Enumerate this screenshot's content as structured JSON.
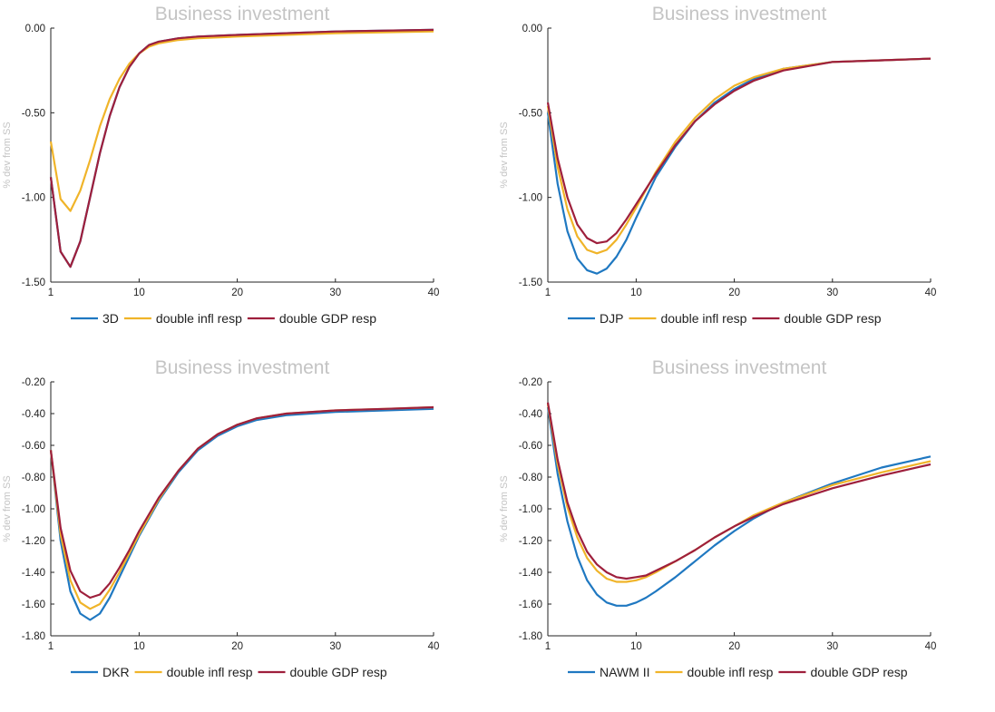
{
  "series_colors": [
    "#1f78c1",
    "#f0b429",
    "#9e1f3c"
  ],
  "chart_data": [
    {
      "type": "line",
      "title": "Business investment",
      "ylabel": "% dev from SS",
      "xlim": [
        1,
        40
      ],
      "ylim": [
        -1.5,
        0
      ],
      "xticks": [
        {
          "v": 1,
          "label": "1"
        },
        {
          "v": 10,
          "label": "10"
        },
        {
          "v": 20,
          "label": "20"
        },
        {
          "v": 30,
          "label": "30"
        },
        {
          "v": 40,
          "label": "40"
        }
      ],
      "yticks": [
        {
          "v": 0,
          "label": "0.00"
        },
        {
          "v": -0.5,
          "label": "-0.50"
        },
        {
          "v": -1.0,
          "label": "-1.00"
        },
        {
          "v": -1.5,
          "label": "-1.50"
        }
      ],
      "legend": "bottom",
      "series": [
        {
          "name": "3D",
          "x": [
            1,
            2,
            3,
            4,
            5,
            6,
            7,
            8,
            9,
            10,
            11,
            12,
            14,
            16,
            20,
            30,
            40
          ],
          "y": [
            -0.88,
            -1.32,
            -1.41,
            -1.26,
            -1.0,
            -0.74,
            -0.52,
            -0.35,
            -0.23,
            -0.15,
            -0.1,
            -0.08,
            -0.06,
            -0.05,
            -0.04,
            -0.02,
            -0.01
          ]
        },
        {
          "name": "double infl resp",
          "x": [
            1,
            2,
            3,
            4,
            5,
            6,
            7,
            8,
            9,
            10,
            11,
            12,
            14,
            16,
            20,
            30,
            40
          ],
          "y": [
            -0.67,
            -1.01,
            -1.08,
            -0.96,
            -0.78,
            -0.58,
            -0.42,
            -0.3,
            -0.21,
            -0.15,
            -0.11,
            -0.09,
            -0.07,
            -0.06,
            -0.05,
            -0.03,
            -0.02
          ]
        },
        {
          "name": "double GDP resp",
          "x": [
            1,
            2,
            3,
            4,
            5,
            6,
            7,
            8,
            9,
            10,
            11,
            12,
            14,
            16,
            20,
            30,
            40
          ],
          "y": [
            -0.88,
            -1.32,
            -1.41,
            -1.26,
            -1.0,
            -0.74,
            -0.52,
            -0.35,
            -0.23,
            -0.15,
            -0.1,
            -0.08,
            -0.06,
            -0.05,
            -0.04,
            -0.02,
            -0.01
          ]
        }
      ]
    },
    {
      "type": "line",
      "title": "Business investment",
      "ylabel": "% dev from SS",
      "xlim": [
        1,
        40
      ],
      "ylim": [
        -1.5,
        0
      ],
      "xticks": [
        {
          "v": 1,
          "label": "1"
        },
        {
          "v": 10,
          "label": "10"
        },
        {
          "v": 20,
          "label": "20"
        },
        {
          "v": 30,
          "label": "30"
        },
        {
          "v": 40,
          "label": "40"
        }
      ],
      "yticks": [
        {
          "v": 0,
          "label": "0.00"
        },
        {
          "v": -0.5,
          "label": "-0.50"
        },
        {
          "v": -1.0,
          "label": "-1.00"
        },
        {
          "v": -1.5,
          "label": "-1.50"
        }
      ],
      "legend": "bottom",
      "series": [
        {
          "name": "DJP",
          "x": [
            1,
            2,
            3,
            4,
            5,
            6,
            7,
            8,
            9,
            10,
            12,
            14,
            16,
            18,
            20,
            22,
            25,
            30,
            35,
            40
          ],
          "y": [
            -0.5,
            -0.92,
            -1.2,
            -1.36,
            -1.43,
            -1.45,
            -1.42,
            -1.35,
            -1.25,
            -1.12,
            -0.88,
            -0.7,
            -0.55,
            -0.44,
            -0.36,
            -0.3,
            -0.24,
            -0.2,
            -0.19,
            -0.18
          ]
        },
        {
          "name": "double infl resp",
          "x": [
            1,
            2,
            3,
            4,
            5,
            6,
            7,
            8,
            9,
            10,
            12,
            14,
            16,
            18,
            20,
            22,
            25,
            30,
            35,
            40
          ],
          "y": [
            -0.46,
            -0.82,
            -1.07,
            -1.23,
            -1.31,
            -1.33,
            -1.31,
            -1.25,
            -1.16,
            -1.06,
            -0.85,
            -0.67,
            -0.53,
            -0.42,
            -0.34,
            -0.29,
            -0.24,
            -0.2,
            -0.19,
            -0.18
          ]
        },
        {
          "name": "double GDP resp",
          "x": [
            1,
            2,
            3,
            4,
            5,
            6,
            7,
            8,
            9,
            10,
            12,
            14,
            16,
            18,
            20,
            22,
            25,
            30,
            35,
            40
          ],
          "y": [
            -0.44,
            -0.77,
            -1.0,
            -1.16,
            -1.24,
            -1.27,
            -1.26,
            -1.21,
            -1.13,
            -1.04,
            -0.86,
            -0.69,
            -0.55,
            -0.45,
            -0.37,
            -0.31,
            -0.25,
            -0.2,
            -0.19,
            -0.18
          ]
        }
      ]
    },
    {
      "type": "line",
      "title": "Business investment",
      "ylabel": "% dev from SS",
      "xlim": [
        1,
        40
      ],
      "ylim": [
        -1.8,
        -0.2
      ],
      "xticks": [
        {
          "v": 1,
          "label": "1"
        },
        {
          "v": 10,
          "label": "10"
        },
        {
          "v": 20,
          "label": "20"
        },
        {
          "v": 30,
          "label": "30"
        },
        {
          "v": 40,
          "label": "40"
        }
      ],
      "yticks": [
        {
          "v": -0.2,
          "label": "-0.20"
        },
        {
          "v": -0.4,
          "label": "-0.40"
        },
        {
          "v": -0.6,
          "label": "-0.60"
        },
        {
          "v": -0.8,
          "label": "-0.80"
        },
        {
          "v": -1.0,
          "label": "-1.00"
        },
        {
          "v": -1.2,
          "label": "-1.20"
        },
        {
          "v": -1.4,
          "label": "-1.40"
        },
        {
          "v": -1.6,
          "label": "-1.60"
        },
        {
          "v": -1.8,
          "label": "-1.80"
        }
      ],
      "legend": "bottom",
      "series": [
        {
          "name": "DKR",
          "x": [
            1,
            2,
            3,
            4,
            5,
            6,
            7,
            8,
            9,
            10,
            12,
            14,
            16,
            18,
            20,
            22,
            25,
            30,
            35,
            40
          ],
          "y": [
            -0.63,
            -1.2,
            -1.52,
            -1.66,
            -1.7,
            -1.66,
            -1.56,
            -1.43,
            -1.3,
            -1.17,
            -0.95,
            -0.77,
            -0.63,
            -0.54,
            -0.48,
            -0.44,
            -0.41,
            -0.39,
            -0.38,
            -0.37
          ]
        },
        {
          "name": "double infl resp",
          "x": [
            1,
            2,
            3,
            4,
            5,
            6,
            7,
            8,
            9,
            10,
            12,
            14,
            16,
            18,
            20,
            22,
            25,
            30,
            35,
            40
          ],
          "y": [
            -0.63,
            -1.16,
            -1.45,
            -1.59,
            -1.63,
            -1.6,
            -1.51,
            -1.4,
            -1.28,
            -1.16,
            -0.94,
            -0.76,
            -0.62,
            -0.53,
            -0.47,
            -0.43,
            -0.4,
            -0.38,
            -0.37,
            -0.36
          ]
        },
        {
          "name": "double GDP resp",
          "x": [
            1,
            2,
            3,
            4,
            5,
            6,
            7,
            8,
            9,
            10,
            12,
            14,
            16,
            18,
            20,
            22,
            25,
            30,
            35,
            40
          ],
          "y": [
            -0.63,
            -1.12,
            -1.39,
            -1.52,
            -1.56,
            -1.54,
            -1.47,
            -1.37,
            -1.26,
            -1.14,
            -0.93,
            -0.76,
            -0.62,
            -0.53,
            -0.47,
            -0.43,
            -0.4,
            -0.38,
            -0.37,
            -0.36
          ]
        }
      ]
    },
    {
      "type": "line",
      "title": "Business investment",
      "ylabel": "% dev from SS",
      "xlim": [
        1,
        40
      ],
      "ylim": [
        -1.8,
        -0.2
      ],
      "xticks": [
        {
          "v": 1,
          "label": "1"
        },
        {
          "v": 10,
          "label": "10"
        },
        {
          "v": 20,
          "label": "20"
        },
        {
          "v": 30,
          "label": "30"
        },
        {
          "v": 40,
          "label": "40"
        }
      ],
      "yticks": [
        {
          "v": -0.2,
          "label": "-0.20"
        },
        {
          "v": -0.4,
          "label": "-0.40"
        },
        {
          "v": -0.6,
          "label": "-0.60"
        },
        {
          "v": -0.8,
          "label": "-0.80"
        },
        {
          "v": -1.0,
          "label": "-1.00"
        },
        {
          "v": -1.2,
          "label": "-1.20"
        },
        {
          "v": -1.4,
          "label": "-1.40"
        },
        {
          "v": -1.6,
          "label": "-1.60"
        },
        {
          "v": -1.8,
          "label": "-1.80"
        }
      ],
      "legend": "bottom",
      "series": [
        {
          "name": "NAWM II",
          "x": [
            1,
            2,
            3,
            4,
            5,
            6,
            7,
            8,
            9,
            10,
            11,
            12,
            14,
            16,
            18,
            20,
            22,
            25,
            30,
            35,
            40
          ],
          "y": [
            -0.36,
            -0.78,
            -1.08,
            -1.3,
            -1.45,
            -1.54,
            -1.59,
            -1.61,
            -1.61,
            -1.59,
            -1.56,
            -1.52,
            -1.43,
            -1.33,
            -1.23,
            -1.14,
            -1.06,
            -0.96,
            -0.84,
            -0.74,
            -0.67
          ]
        },
        {
          "name": "double infl resp",
          "x": [
            1,
            2,
            3,
            4,
            5,
            6,
            7,
            8,
            9,
            10,
            11,
            12,
            14,
            16,
            18,
            20,
            22,
            25,
            30,
            35,
            40
          ],
          "y": [
            -0.34,
            -0.72,
            -0.99,
            -1.18,
            -1.31,
            -1.39,
            -1.44,
            -1.46,
            -1.46,
            -1.45,
            -1.43,
            -1.4,
            -1.33,
            -1.26,
            -1.18,
            -1.11,
            -1.04,
            -0.96,
            -0.85,
            -0.77,
            -0.7
          ]
        },
        {
          "name": "double GDP resp",
          "x": [
            1,
            2,
            3,
            4,
            5,
            6,
            7,
            8,
            9,
            10,
            11,
            12,
            14,
            16,
            18,
            20,
            22,
            25,
            30,
            35,
            40
          ],
          "y": [
            -0.33,
            -0.69,
            -0.96,
            -1.14,
            -1.27,
            -1.35,
            -1.4,
            -1.43,
            -1.44,
            -1.43,
            -1.42,
            -1.39,
            -1.33,
            -1.26,
            -1.18,
            -1.11,
            -1.05,
            -0.97,
            -0.87,
            -0.79,
            -0.72
          ]
        }
      ]
    }
  ]
}
